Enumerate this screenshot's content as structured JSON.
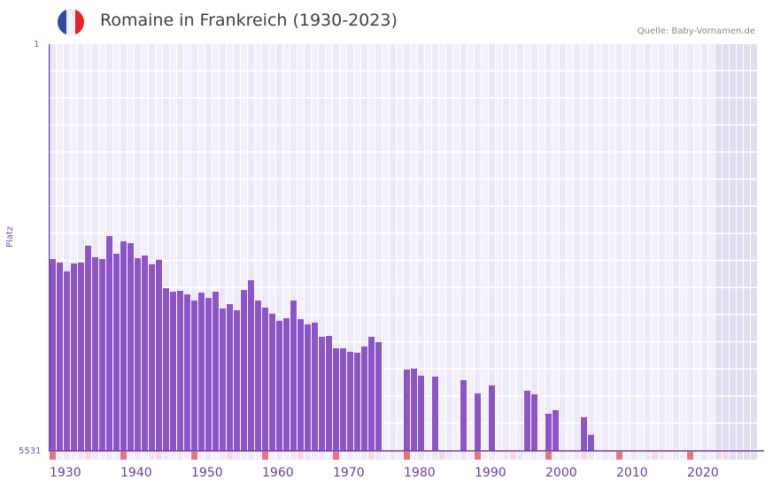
{
  "header": {
    "title": "Romaine in Frankreich (1930-2023)",
    "source": "Quelle: Baby-Vornamen.de",
    "flag_colors": [
      "#2e4d9e",
      "#f0f0f5",
      "#e8202a"
    ]
  },
  "axis": {
    "y_title": "Platz",
    "y_top_label": "1",
    "y_bottom_label": "5531",
    "x_ticks": [
      "1930",
      "1940",
      "1950",
      "1960",
      "1970",
      "1980",
      "1990",
      "2000",
      "2010",
      "2020"
    ]
  },
  "colors": {
    "bar": "#8b55c7",
    "axis": "#6a3d9a",
    "grid_bg": "#ede8f8",
    "grid_alt": "#f3effb",
    "future_bg": "#e2dcef",
    "decade_marker": "#e8737a",
    "halfdecade_marker": "#f6d9e0"
  },
  "chart_data": {
    "type": "bar",
    "title": "Romaine in Frankreich (1930-2023)",
    "xlabel": "",
    "ylabel": "Platz",
    "ylim": [
      5531,
      1
    ],
    "y_inverted": true,
    "x_range": [
      1930,
      2030
    ],
    "future_shaded_from": 2024,
    "grid": true,
    "legend": null,
    "categories": [
      1930,
      1931,
      1932,
      1933,
      1934,
      1935,
      1936,
      1937,
      1938,
      1939,
      1940,
      1941,
      1942,
      1943,
      1944,
      1945,
      1946,
      1947,
      1948,
      1949,
      1950,
      1951,
      1952,
      1953,
      1954,
      1955,
      1956,
      1957,
      1958,
      1959,
      1960,
      1961,
      1962,
      1963,
      1964,
      1965,
      1966,
      1967,
      1968,
      1969,
      1970,
      1971,
      1972,
      1973,
      1974,
      1975,
      1976,
      1980,
      1981,
      1982,
      1984,
      1988,
      1990,
      1992,
      1997,
      1998,
      2000,
      2001,
      2005,
      2006
    ],
    "values": [
      2922,
      2970,
      3090,
      2982,
      2970,
      2742,
      2898,
      2922,
      2610,
      2850,
      2682,
      2706,
      2910,
      2874,
      2994,
      2934,
      3319,
      3367,
      3355,
      3403,
      3487,
      3379,
      3451,
      3367,
      3595,
      3535,
      3619,
      3343,
      3211,
      3487,
      3583,
      3667,
      3763,
      3727,
      3487,
      3739,
      3811,
      3787,
      3980,
      3968,
      4136,
      4136,
      4184,
      4196,
      4112,
      3980,
      4052,
      4425,
      4413,
      4509,
      4521,
      4569,
      4749,
      4641,
      4713,
      4761,
      5026,
      4977,
      5073,
      5313
    ]
  }
}
